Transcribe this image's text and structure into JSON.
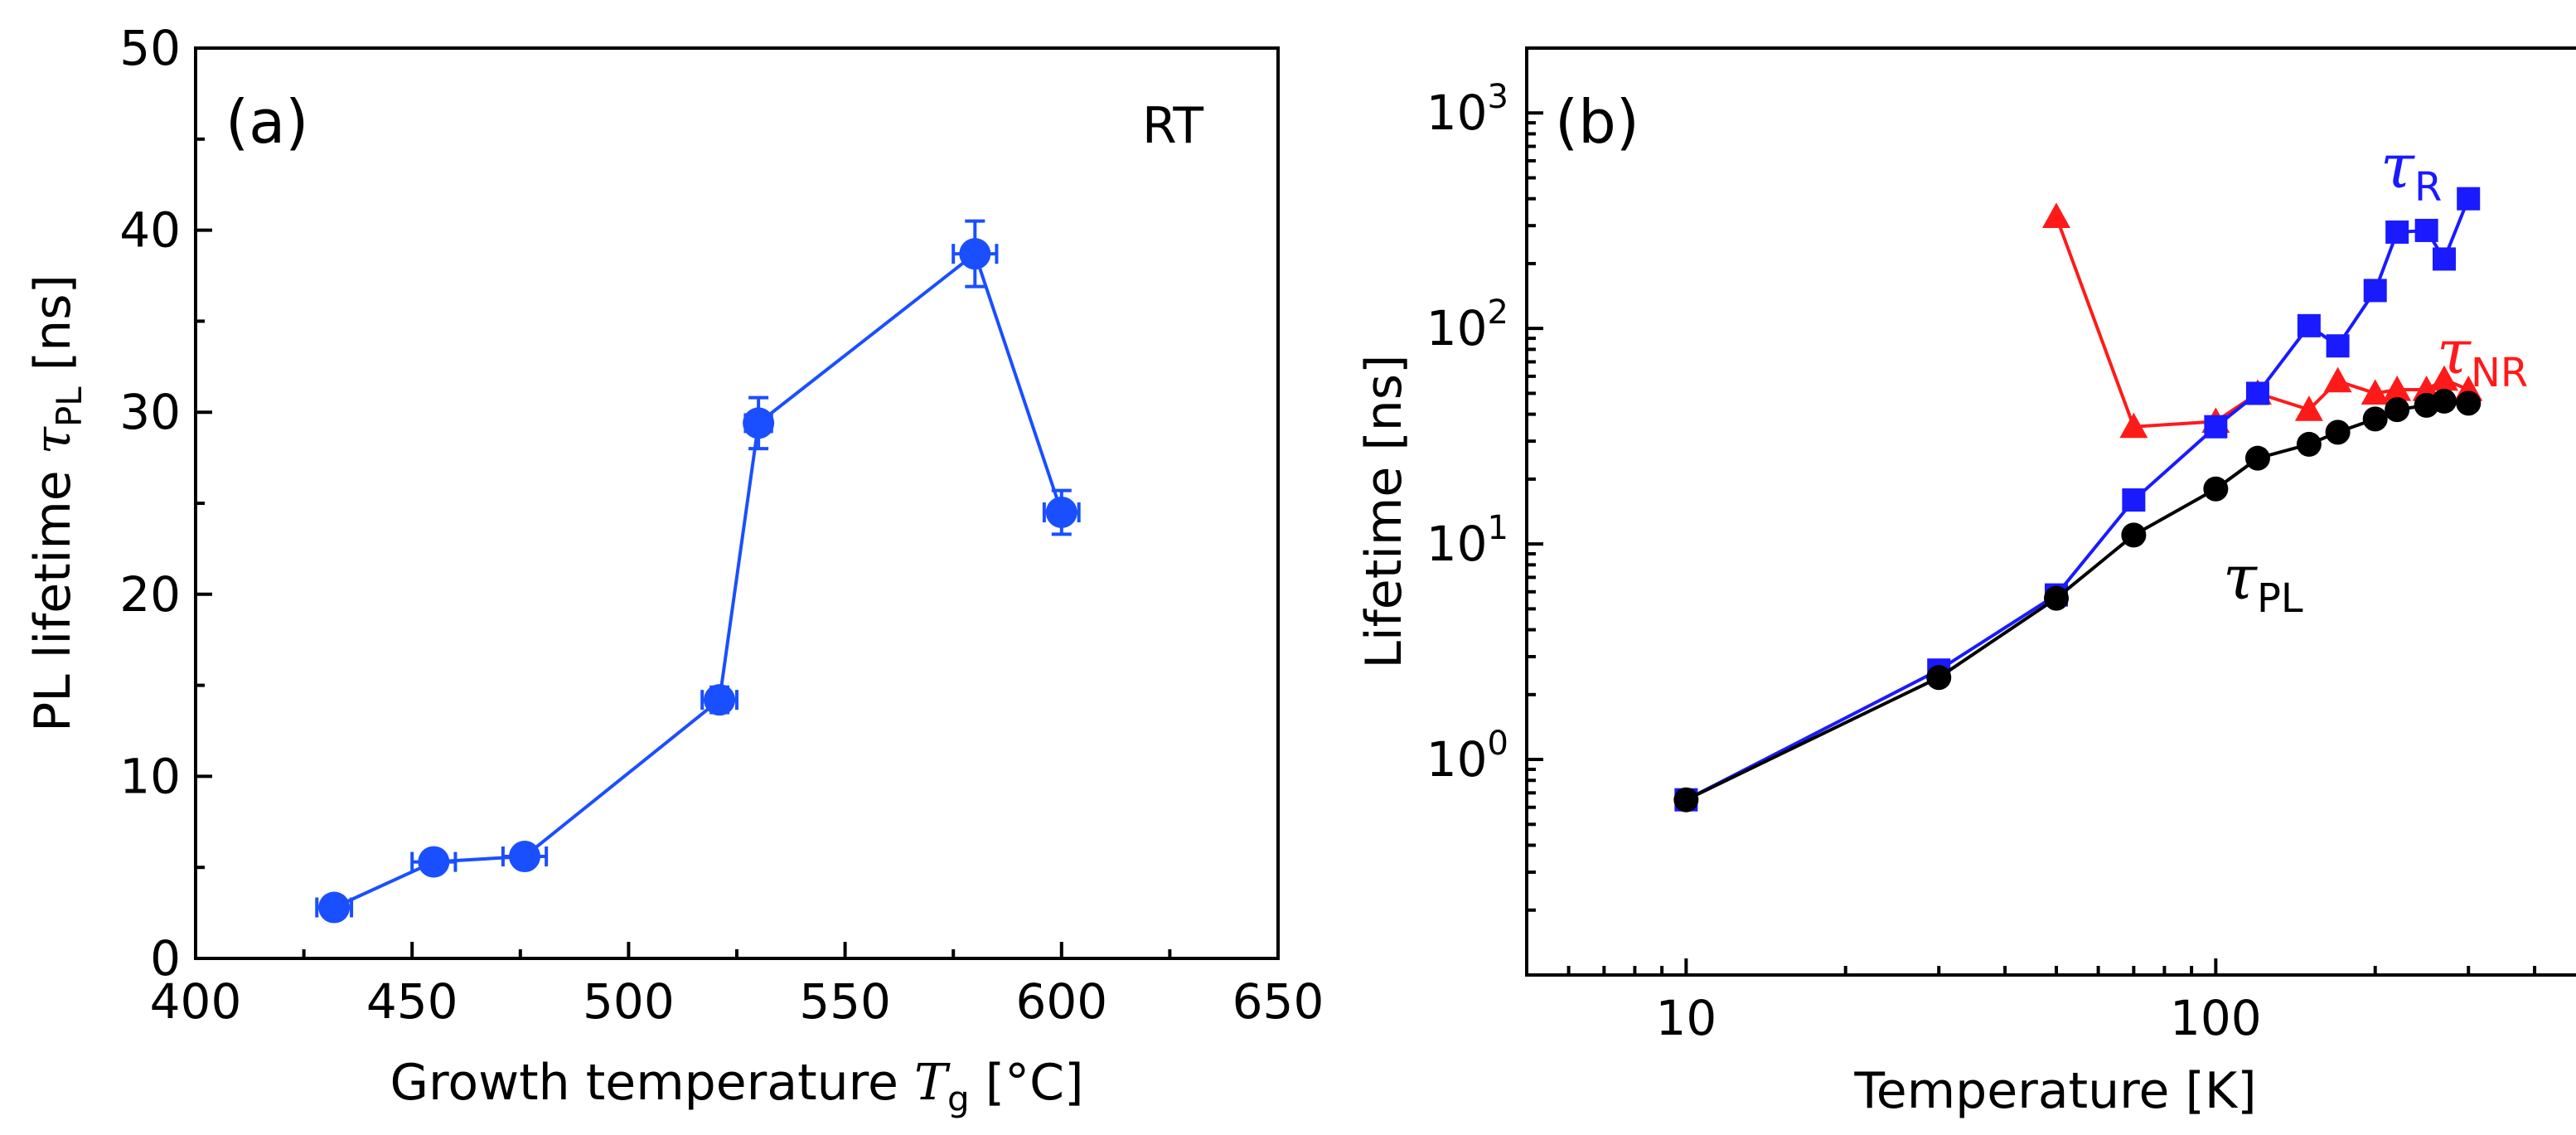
{
  "chart_data": [
    {
      "panel_label": "(a)",
      "type": "scatter",
      "annotation": "RT",
      "xlabel_text": "Growth temperature ",
      "xlabel_var": "T",
      "xlabel_sub": "g",
      "xlabel_unit": " [°C]",
      "ylabel_text": "PL lifetime ",
      "ylabel_var": "τ",
      "ylabel_sub": "PL",
      "ylabel_unit": " [ns]",
      "xlim": [
        400,
        650
      ],
      "ylim": [
        0,
        50
      ],
      "xticks": [
        400,
        450,
        500,
        550,
        600,
        650
      ],
      "yticks": [
        0,
        10,
        20,
        30,
        40,
        50
      ],
      "series": [
        {
          "name": "τPL",
          "color": "#1a4fff",
          "x": [
            432,
            455,
            476,
            521,
            530,
            580,
            600
          ],
          "y": [
            2.8,
            5.3,
            5.6,
            14.2,
            29.4,
            38.7,
            24.5
          ],
          "xerr": [
            4,
            5,
            5,
            4,
            3,
            5,
            4
          ],
          "yerr": [
            0.4,
            0.5,
            0.5,
            0.7,
            1.4,
            1.8,
            1.2
          ]
        }
      ]
    },
    {
      "panel_label": "(b)",
      "type": "line",
      "xlabel": "Temperature [K]",
      "ylabel": "Lifetime [ns]",
      "xscale": "log",
      "yscale": "log",
      "xlim": [
        5,
        500
      ],
      "ylim": [
        0.1,
        2000
      ],
      "xtick_labels": [
        "10",
        "100"
      ],
      "xtick_values": [
        10,
        100
      ],
      "ytick_base": "10",
      "ytick_exponents": [
        "0",
        "1",
        "2",
        "3"
      ],
      "ytick_values": [
        1,
        10,
        100,
        1000
      ],
      "series": [
        {
          "name": "τPL",
          "label_var": "τ",
          "label_sub": "PL",
          "color": "#000000",
          "marker": "circle",
          "x": [
            10,
            30,
            50,
            70,
            100,
            120,
            150,
            170,
            200,
            220,
            250,
            270,
            300
          ],
          "y": [
            0.65,
            2.4,
            5.6,
            11,
            18,
            25,
            29,
            33,
            38,
            42,
            44,
            46,
            45
          ]
        },
        {
          "name": "τR",
          "label_var": "τ",
          "label_sub": "R",
          "color": "#1a1aff",
          "marker": "square",
          "x": [
            10,
            30,
            50,
            70,
            100,
            120,
            150,
            170,
            200,
            220,
            250,
            270,
            300
          ],
          "y": [
            0.65,
            2.6,
            5.8,
            16,
            35,
            50,
            103,
            83,
            150,
            280,
            285,
            210,
            400
          ]
        },
        {
          "name": "τNR",
          "label_var": "τ",
          "label_sub": "NR",
          "color": "#ff1a1a",
          "marker": "triangle",
          "x": [
            50,
            70,
            100,
            120,
            150,
            170,
            200,
            220,
            250,
            270,
            300
          ],
          "y": [
            330,
            35,
            37,
            50,
            42,
            57,
            50,
            52,
            52,
            58,
            52
          ]
        }
      ]
    }
  ]
}
